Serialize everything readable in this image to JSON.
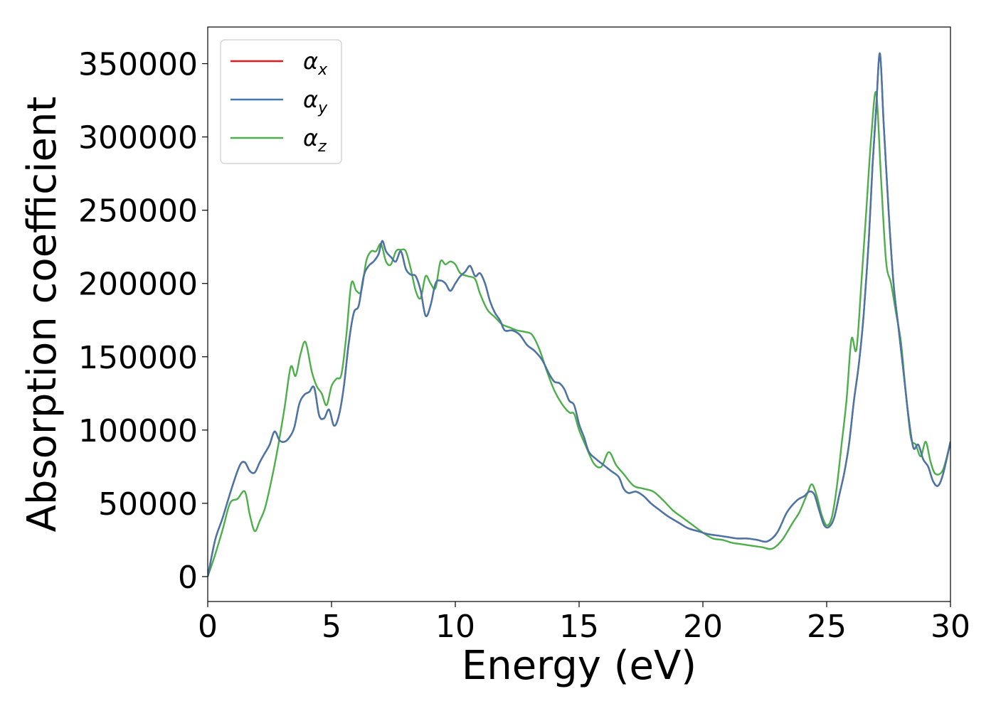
{
  "chart_data": {
    "type": "line",
    "title": "",
    "xlabel": "Energy (eV)",
    "ylabel": "Absorption coefficient",
    "xlim": [
      0,
      30
    ],
    "ylim": [
      -17000,
      375000
    ],
    "xticks": [
      0,
      5,
      10,
      15,
      20,
      25,
      30
    ],
    "yticks": [
      0,
      50000,
      100000,
      150000,
      200000,
      250000,
      300000,
      350000
    ],
    "grid": false,
    "legend_position": "top-left",
    "series": [
      {
        "name": "α",
        "subscript": "x",
        "color": "#e41a1c",
        "x": [
          0,
          0.3,
          0.6,
          1,
          1.3,
          1.5,
          1.7,
          1.9,
          2.1,
          2.3,
          2.5,
          2.7,
          2.9,
          3.1,
          3.3,
          3.5,
          3.7,
          3.9,
          4.1,
          4.3,
          4.5,
          4.7,
          4.9,
          5.1,
          5.3,
          5.5,
          5.7,
          5.9,
          6.1,
          6.3,
          6.5,
          6.7,
          6.9,
          7.05,
          7.2,
          7.4,
          7.6,
          7.8,
          8,
          8.2,
          8.4,
          8.6,
          8.8,
          9,
          9.2,
          9.4,
          9.6,
          9.8,
          10,
          10.2,
          10.4,
          10.6,
          10.8,
          11,
          11.2,
          11.4,
          11.6,
          11.8,
          12,
          12.3,
          12.6,
          12.9,
          13.2,
          13.5,
          13.8,
          14,
          14.2,
          14.4,
          14.6,
          14.8,
          15,
          15.2,
          15.4,
          15.7,
          16,
          16.3,
          16.6,
          16.8,
          17,
          17.3,
          17.6,
          17.9,
          18.2,
          18.6,
          19,
          19.4,
          19.8,
          20.2,
          20.6,
          21,
          21.4,
          21.8,
          22.2,
          22.6,
          23,
          23.4,
          23.8,
          24.1,
          24.3,
          24.5,
          24.7,
          24.9,
          25.1,
          25.3,
          25.5,
          25.7,
          25.9,
          26.1,
          26.3,
          26.5,
          26.7,
          26.85,
          27,
          27.15,
          27.3,
          27.5,
          27.7,
          27.9,
          28.1,
          28.3,
          28.5,
          28.7,
          28.9,
          29.1,
          29.3,
          29.5,
          29.7,
          30
        ],
        "y": [
          0,
          25000,
          40000,
          62000,
          76000,
          78000,
          72000,
          71000,
          78000,
          84000,
          90000,
          99000,
          93000,
          92000,
          95000,
          102000,
          118000,
          124000,
          126000,
          129000,
          110000,
          108000,
          114000,
          103000,
          110000,
          130000,
          160000,
          180000,
          185000,
          205000,
          212000,
          215000,
          220000,
          229000,
          222000,
          218000,
          215000,
          222000,
          210000,
          206000,
          205000,
          195000,
          178000,
          185000,
          200000,
          202000,
          200000,
          195000,
          200000,
          205000,
          208000,
          212000,
          205000,
          207000,
          200000,
          188000,
          180000,
          175000,
          168000,
          168000,
          165000,
          158000,
          154000,
          148000,
          138000,
          133000,
          132000,
          128000,
          120000,
          117000,
          104000,
          95000,
          85000,
          80000,
          76000,
          72000,
          68000,
          60000,
          57000,
          58000,
          55000,
          50000,
          46000,
          41000,
          37000,
          33000,
          31000,
          29000,
          28000,
          27000,
          26000,
          26000,
          25000,
          24000,
          30000,
          44000,
          52000,
          55000,
          58000,
          56000,
          45000,
          35000,
          34000,
          40000,
          55000,
          70000,
          90000,
          120000,
          145000,
          180000,
          230000,
          280000,
          320000,
          357000,
          310000,
          250000,
          200000,
          170000,
          140000,
          110000,
          88000,
          90000,
          80000,
          75000,
          65000,
          62000,
          70000,
          92000
        ]
      },
      {
        "name": "α",
        "subscript": "y",
        "color": "#4477aa",
        "x": [
          0,
          0.3,
          0.6,
          1,
          1.3,
          1.5,
          1.7,
          1.9,
          2.1,
          2.3,
          2.5,
          2.7,
          2.9,
          3.1,
          3.3,
          3.5,
          3.7,
          3.9,
          4.1,
          4.3,
          4.5,
          4.7,
          4.9,
          5.1,
          5.3,
          5.5,
          5.7,
          5.9,
          6.1,
          6.3,
          6.5,
          6.7,
          6.9,
          7.05,
          7.2,
          7.4,
          7.6,
          7.8,
          8,
          8.2,
          8.4,
          8.6,
          8.8,
          9,
          9.2,
          9.4,
          9.6,
          9.8,
          10,
          10.2,
          10.4,
          10.6,
          10.8,
          11,
          11.2,
          11.4,
          11.6,
          11.8,
          12,
          12.3,
          12.6,
          12.9,
          13.2,
          13.5,
          13.8,
          14,
          14.2,
          14.4,
          14.6,
          14.8,
          15,
          15.2,
          15.4,
          15.7,
          16,
          16.3,
          16.6,
          16.8,
          17,
          17.3,
          17.6,
          17.9,
          18.2,
          18.6,
          19,
          19.4,
          19.8,
          20.2,
          20.6,
          21,
          21.4,
          21.8,
          22.2,
          22.6,
          23,
          23.4,
          23.8,
          24.1,
          24.3,
          24.5,
          24.7,
          24.9,
          25.1,
          25.3,
          25.5,
          25.7,
          25.9,
          26.1,
          26.3,
          26.5,
          26.7,
          26.85,
          27,
          27.15,
          27.3,
          27.5,
          27.7,
          27.9,
          28.1,
          28.3,
          28.5,
          28.7,
          28.9,
          29.1,
          29.3,
          29.5,
          29.7,
          30
        ],
        "y": [
          0,
          25000,
          40000,
          62000,
          76000,
          78000,
          72000,
          71000,
          78000,
          84000,
          90000,
          99000,
          93000,
          92000,
          95000,
          102000,
          118000,
          124000,
          126000,
          129000,
          110000,
          108000,
          114000,
          103000,
          110000,
          130000,
          160000,
          180000,
          185000,
          205000,
          212000,
          215000,
          220000,
          229000,
          222000,
          218000,
          215000,
          222000,
          210000,
          206000,
          205000,
          195000,
          178000,
          185000,
          200000,
          202000,
          200000,
          195000,
          200000,
          205000,
          208000,
          212000,
          205000,
          207000,
          200000,
          188000,
          180000,
          175000,
          168000,
          168000,
          165000,
          158000,
          154000,
          148000,
          138000,
          133000,
          132000,
          128000,
          120000,
          117000,
          104000,
          95000,
          85000,
          80000,
          76000,
          72000,
          68000,
          60000,
          57000,
          58000,
          55000,
          50000,
          46000,
          41000,
          37000,
          33000,
          31000,
          29000,
          28000,
          27000,
          26000,
          26000,
          25000,
          24000,
          30000,
          44000,
          52000,
          55000,
          58000,
          56000,
          45000,
          35000,
          34000,
          40000,
          55000,
          70000,
          90000,
          120000,
          145000,
          180000,
          230000,
          280000,
          320000,
          357000,
          310000,
          250000,
          200000,
          170000,
          140000,
          110000,
          88000,
          90000,
          80000,
          75000,
          65000,
          62000,
          70000,
          92000
        ]
      },
      {
        "name": "α",
        "subscript": "z",
        "color": "#4daf4a",
        "x": [
          0,
          0.3,
          0.6,
          0.9,
          1.2,
          1.5,
          1.7,
          1.9,
          2.1,
          2.3,
          2.5,
          2.8,
          3.1,
          3.35,
          3.55,
          3.75,
          3.95,
          4.2,
          4.4,
          4.6,
          4.8,
          5,
          5.2,
          5.4,
          5.6,
          5.8,
          6,
          6.2,
          6.4,
          6.6,
          6.8,
          7,
          7.2,
          7.4,
          7.6,
          7.8,
          8,
          8.2,
          8.4,
          8.6,
          8.8,
          9,
          9.2,
          9.4,
          9.6,
          9.8,
          10,
          10.2,
          10.5,
          10.8,
          11,
          11.3,
          11.6,
          11.9,
          12.2,
          12.5,
          12.8,
          13.1,
          13.4,
          13.7,
          14,
          14.3,
          14.6,
          14.8,
          15,
          15.3,
          15.6,
          15.9,
          16.2,
          16.5,
          16.8,
          17.2,
          17.6,
          18,
          18.4,
          18.8,
          19.2,
          19.6,
          20,
          20.4,
          20.8,
          21.2,
          21.6,
          22,
          22.4,
          22.8,
          23.2,
          23.6,
          23.9,
          24.2,
          24.4,
          24.6,
          24.8,
          25,
          25.2,
          25.4,
          25.6,
          25.8,
          26,
          26.2,
          26.4,
          26.6,
          26.8,
          27,
          27.2,
          27.4,
          27.6,
          27.8,
          28,
          28.2,
          28.4,
          28.6,
          28.8,
          29,
          29.2,
          29.4,
          29.7,
          30
        ],
        "y": [
          0,
          15000,
          32000,
          50000,
          53000,
          58000,
          42000,
          31000,
          38000,
          46000,
          60000,
          85000,
          115000,
          143000,
          137000,
          152000,
          160000,
          140000,
          130000,
          125000,
          117000,
          130000,
          135000,
          138000,
          165000,
          200000,
          195000,
          195000,
          215000,
          222000,
          222000,
          227000,
          215000,
          213000,
          222000,
          223000,
          222000,
          210000,
          195000,
          190000,
          205000,
          200000,
          197000,
          215000,
          213000,
          215000,
          213000,
          207000,
          205000,
          203000,
          193000,
          182000,
          177000,
          172000,
          170000,
          168000,
          167000,
          165000,
          155000,
          140000,
          127000,
          118000,
          112000,
          111000,
          100000,
          88000,
          77000,
          75000,
          85000,
          76000,
          70000,
          62000,
          60000,
          58000,
          52000,
          45000,
          40000,
          35000,
          30000,
          26000,
          25000,
          23000,
          22000,
          21000,
          20000,
          19000,
          25000,
          36000,
          44000,
          56000,
          63000,
          55000,
          42000,
          35000,
          40000,
          60000,
          90000,
          120000,
          162000,
          155000,
          200000,
          250000,
          300000,
          330000,
          270000,
          215000,
          200000,
          180000,
          160000,
          125000,
          95000,
          90000,
          82000,
          92000,
          78000,
          70000,
          73000,
          92000
        ]
      }
    ]
  }
}
